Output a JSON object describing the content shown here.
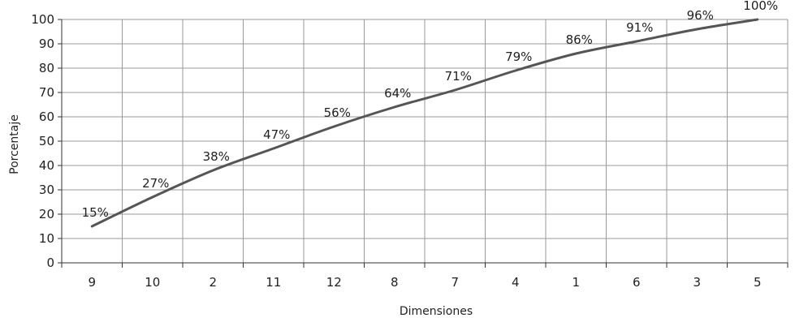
{
  "chart_data": {
    "type": "line",
    "categories": [
      "9",
      "10",
      "2",
      "11",
      "12",
      "8",
      "7",
      "4",
      "1",
      "6",
      "3",
      "5"
    ],
    "values": [
      15,
      27,
      38,
      47,
      56,
      64,
      71,
      79,
      86,
      91,
      96,
      100
    ],
    "data_labels": [
      "15%",
      "27%",
      "38%",
      "47%",
      "56%",
      "64%",
      "71%",
      "79%",
      "86%",
      "91%",
      "96%",
      "100%"
    ],
    "xlabel": "Dimensiones",
    "ylabel": "Porcentaje",
    "ylim": [
      0,
      100
    ],
    "yticks": [
      "0",
      "10",
      "20",
      "30",
      "40",
      "50",
      "60",
      "70",
      "80",
      "90",
      "100"
    ],
    "grid": true,
    "colors": {
      "line": "#555555",
      "grid": "#999999",
      "axis": "#333333"
    }
  }
}
